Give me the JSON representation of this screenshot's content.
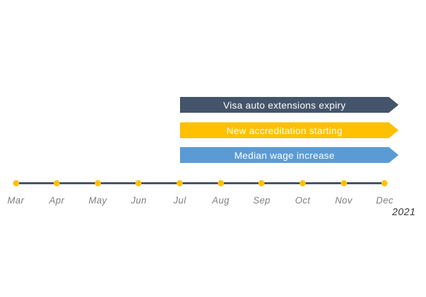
{
  "chart_data": {
    "type": "timeline",
    "title": "",
    "year": "2021",
    "months": [
      "Mar",
      "Apr",
      "May",
      "Jun",
      "Jul",
      "Aug",
      "Sep",
      "Oct",
      "Nov",
      "Dec"
    ],
    "events": [
      {
        "label": "Visa auto extensions expiry",
        "color": "#44546A",
        "text_color": "#FFFFFF",
        "start": "Jul",
        "end": "Dec",
        "arrow_continues": true
      },
      {
        "label": "New accreditation starting",
        "color": "#FFC000",
        "text_color": "#FFFFFF",
        "start": "Jul",
        "end": "Dec",
        "arrow_continues": true
      },
      {
        "label": "Median wage increase",
        "color": "#5B9BD5",
        "text_color": "#FFFFFF",
        "start": "Jul",
        "end": "Dec",
        "arrow_continues": true
      }
    ],
    "axis": {
      "line_color": "#44546A",
      "marker_color": "#FFC000",
      "label_color": "#7f7f7f",
      "year_label_color": "#3a3a3a"
    }
  }
}
